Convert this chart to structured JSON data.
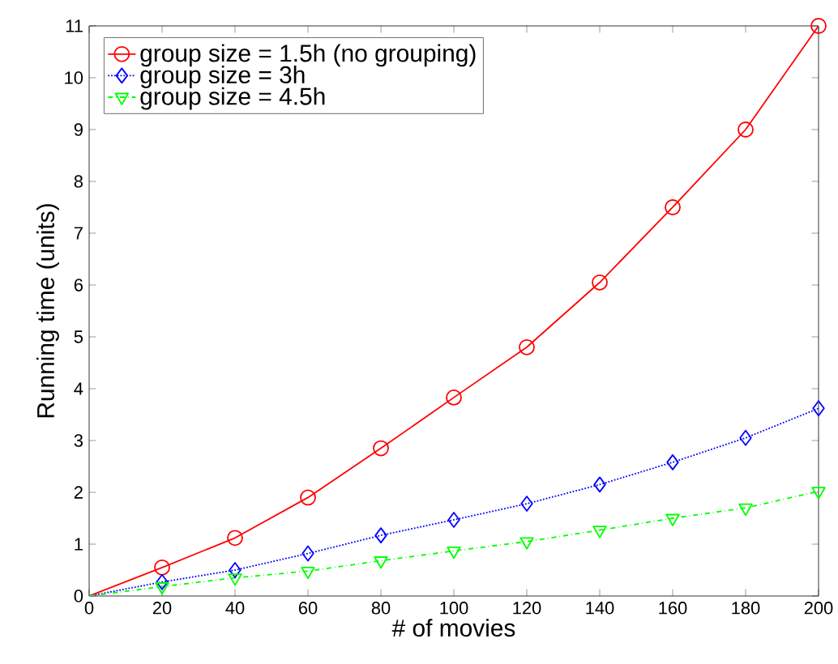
{
  "chart_data": {
    "type": "line",
    "xlabel": "# of movies",
    "ylabel": "Running time (units)",
    "x": [
      0,
      20,
      40,
      60,
      80,
      100,
      120,
      140,
      160,
      180,
      200
    ],
    "series": [
      {
        "name": "group size = 1.5h (no grouping)",
        "color": "#ff0000",
        "marker": "circle",
        "line_style": "solid",
        "values": [
          0,
          0.55,
          1.12,
          1.9,
          2.85,
          3.83,
          4.8,
          6.05,
          7.5,
          9.0,
          11.0
        ]
      },
      {
        "name": "group size = 3h",
        "color": "#0000ff",
        "marker": "diamond",
        "line_style": "dotted",
        "values": [
          0,
          0.27,
          0.5,
          0.82,
          1.17,
          1.47,
          1.78,
          2.15,
          2.58,
          3.05,
          3.62
        ]
      },
      {
        "name": "group size = 4.5h",
        "color": "#00ff00",
        "marker": "triangle",
        "line_style": "dashdot",
        "values": [
          0,
          0.18,
          0.35,
          0.48,
          0.68,
          0.87,
          1.05,
          1.27,
          1.5,
          1.7,
          2.02
        ]
      }
    ],
    "xlim": [
      0,
      200
    ],
    "xticks": [
      0,
      20,
      40,
      60,
      80,
      100,
      120,
      140,
      160,
      180,
      200
    ],
    "ylim": [
      0,
      11
    ],
    "yticks": [
      0,
      1,
      2,
      3,
      4,
      5,
      6,
      7,
      8,
      9,
      10,
      11
    ],
    "grid": false,
    "legend": "top left"
  }
}
